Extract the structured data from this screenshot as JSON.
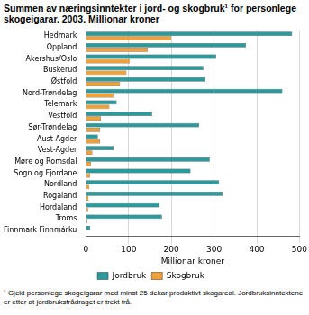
{
  "chart_data": {
    "type": "bar",
    "orientation": "horizontal",
    "title": "Summen av næringsinntekter i jord- og skogbruk¹ for personlege skogeigarar. 2003. Millionar kroner",
    "x_label": "Millionar kroner",
    "annotations": [
      "¹ Gjeld personlege skogeigarar med minst 25 dekar produktivt skogareal. Jordbruksinntektene er etter at jordbruksfrådraget er trekt frå."
    ],
    "categories": [
      "Hedmark",
      "Oppland",
      "Akershus/Oslo",
      "Buskerud",
      "Østfold",
      "Nord-Trøndelag",
      "Telemark",
      "Vestfold",
      "Sør-Trøndelag",
      "Aust-Agder",
      "Vest-Agder",
      "Møre og Romsdal",
      "Sogn og Fjordane",
      "Nordland",
      "Rogaland",
      "Hordaland",
      "Troms",
      "Finnmark Finnmárku"
    ],
    "series": [
      {
        "name": "Jordbruk",
        "color": "#2a9a9c",
        "values": [
          483,
          375,
          305,
          275,
          280,
          460,
          72,
          155,
          265,
          28,
          65,
          290,
          245,
          312,
          320,
          172,
          178,
          10
        ]
      },
      {
        "name": "Skogbruk",
        "color": "#f0a035",
        "values": [
          200,
          145,
          103,
          95,
          80,
          65,
          55,
          35,
          33,
          33,
          15,
          12,
          10,
          8,
          6,
          5,
          3,
          1
        ]
      }
    ],
    "xlim": [
      0,
      500
    ],
    "xticks": [
      0,
      100,
      200,
      300,
      400,
      500
    ],
    "grid": true,
    "legend": "bottom"
  }
}
